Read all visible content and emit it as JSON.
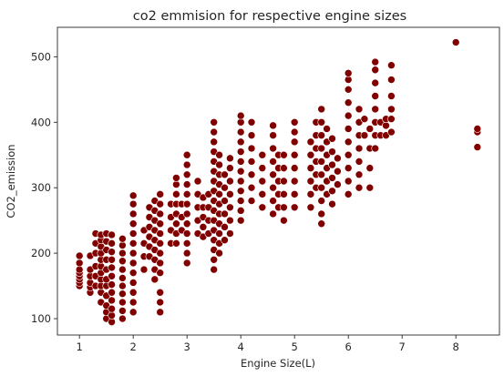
{
  "chart_data": {
    "type": "scatter",
    "title": "co2 emmision for respective engine sizes",
    "xlabel": "Engine Size(L)",
    "ylabel": "CO2_emission",
    "xlim": [
      0.59,
      8.81
    ],
    "ylim": [
      75,
      545
    ],
    "xticks": [
      "1",
      "2",
      "3",
      "4",
      "5",
      "6",
      "7",
      "8"
    ],
    "yticks": [
      "100",
      "200",
      "300",
      "400",
      "500"
    ],
    "grid": false,
    "legend": "none",
    "marker_color": "#800000",
    "marker_edge": "#ffffff",
    "series": [
      {
        "points": [
          [
            1.0,
            150
          ],
          [
            1.0,
            155
          ],
          [
            1.0,
            160
          ],
          [
            1.0,
            165
          ],
          [
            1.0,
            170
          ],
          [
            1.0,
            175
          ],
          [
            1.0,
            185
          ],
          [
            1.0,
            196
          ],
          [
            1.2,
            140
          ],
          [
            1.2,
            148
          ],
          [
            1.2,
            155
          ],
          [
            1.2,
            165
          ],
          [
            1.2,
            175
          ],
          [
            1.2,
            196
          ],
          [
            1.3,
            150
          ],
          [
            1.3,
            165
          ],
          [
            1.3,
            180
          ],
          [
            1.3,
            200
          ],
          [
            1.3,
            215
          ],
          [
            1.3,
            230
          ],
          [
            1.4,
            125
          ],
          [
            1.4,
            140
          ],
          [
            1.4,
            150
          ],
          [
            1.4,
            160
          ],
          [
            1.4,
            170
          ],
          [
            1.4,
            180
          ],
          [
            1.4,
            190
          ],
          [
            1.4,
            200
          ],
          [
            1.4,
            210
          ],
          [
            1.4,
            220
          ],
          [
            1.4,
            228
          ],
          [
            1.5,
            100
          ],
          [
            1.5,
            110
          ],
          [
            1.5,
            120
          ],
          [
            1.5,
            135
          ],
          [
            1.5,
            150
          ],
          [
            1.5,
            160
          ],
          [
            1.5,
            175
          ],
          [
            1.5,
            190
          ],
          [
            1.5,
            205
          ],
          [
            1.5,
            218
          ],
          [
            1.5,
            230
          ],
          [
            1.6,
            95
          ],
          [
            1.6,
            105
          ],
          [
            1.6,
            115
          ],
          [
            1.6,
            128
          ],
          [
            1.6,
            140
          ],
          [
            1.6,
            152
          ],
          [
            1.6,
            165
          ],
          [
            1.6,
            178
          ],
          [
            1.6,
            190
          ],
          [
            1.6,
            202
          ],
          [
            1.6,
            215
          ],
          [
            1.6,
            228
          ],
          [
            1.8,
            100
          ],
          [
            1.8,
            112
          ],
          [
            1.8,
            125
          ],
          [
            1.8,
            138
          ],
          [
            1.8,
            150
          ],
          [
            1.8,
            162
          ],
          [
            1.8,
            175
          ],
          [
            1.8,
            188
          ],
          [
            1.8,
            200
          ],
          [
            1.8,
            212
          ],
          [
            1.8,
            222
          ],
          [
            2.0,
            110
          ],
          [
            2.0,
            125
          ],
          [
            2.0,
            140
          ],
          [
            2.0,
            155
          ],
          [
            2.0,
            170
          ],
          [
            2.0,
            185
          ],
          [
            2.0,
            200
          ],
          [
            2.0,
            215
          ],
          [
            2.0,
            230
          ],
          [
            2.0,
            245
          ],
          [
            2.0,
            260
          ],
          [
            2.0,
            275
          ],
          [
            2.0,
            288
          ],
          [
            2.2,
            175
          ],
          [
            2.2,
            195
          ],
          [
            2.2,
            215
          ],
          [
            2.2,
            235
          ],
          [
            2.3,
            195
          ],
          [
            2.3,
            210
          ],
          [
            2.3,
            225
          ],
          [
            2.3,
            240
          ],
          [
            2.3,
            255
          ],
          [
            2.3,
            270
          ],
          [
            2.4,
            160
          ],
          [
            2.4,
            175
          ],
          [
            2.4,
            190
          ],
          [
            2.4,
            205
          ],
          [
            2.4,
            220
          ],
          [
            2.4,
            235
          ],
          [
            2.4,
            250
          ],
          [
            2.4,
            265
          ],
          [
            2.4,
            280
          ],
          [
            2.5,
            110
          ],
          [
            2.5,
            125
          ],
          [
            2.5,
            140
          ],
          [
            2.5,
            170
          ],
          [
            2.5,
            185
          ],
          [
            2.5,
            200
          ],
          [
            2.5,
            215
          ],
          [
            2.5,
            230
          ],
          [
            2.5,
            245
          ],
          [
            2.5,
            260
          ],
          [
            2.5,
            275
          ],
          [
            2.5,
            290
          ],
          [
            2.7,
            215
          ],
          [
            2.7,
            235
          ],
          [
            2.7,
            255
          ],
          [
            2.7,
            275
          ],
          [
            2.8,
            215
          ],
          [
            2.8,
            230
          ],
          [
            2.8,
            245
          ],
          [
            2.8,
            260
          ],
          [
            2.8,
            275
          ],
          [
            2.8,
            290
          ],
          [
            2.8,
            305
          ],
          [
            2.8,
            315
          ],
          [
            2.9,
            235
          ],
          [
            2.9,
            255
          ],
          [
            2.9,
            275
          ],
          [
            3.0,
            185
          ],
          [
            3.0,
            200
          ],
          [
            3.0,
            215
          ],
          [
            3.0,
            230
          ],
          [
            3.0,
            245
          ],
          [
            3.0,
            260
          ],
          [
            3.0,
            275
          ],
          [
            3.0,
            290
          ],
          [
            3.0,
            305
          ],
          [
            3.0,
            320
          ],
          [
            3.0,
            335
          ],
          [
            3.0,
            350
          ],
          [
            3.2,
            230
          ],
          [
            3.2,
            250
          ],
          [
            3.2,
            270
          ],
          [
            3.2,
            290
          ],
          [
            3.2,
            310
          ],
          [
            3.3,
            225
          ],
          [
            3.3,
            240
          ],
          [
            3.3,
            255
          ],
          [
            3.3,
            270
          ],
          [
            3.3,
            285
          ],
          [
            3.4,
            230
          ],
          [
            3.4,
            250
          ],
          [
            3.4,
            270
          ],
          [
            3.4,
            290
          ],
          [
            3.5,
            175
          ],
          [
            3.5,
            190
          ],
          [
            3.5,
            205
          ],
          [
            3.5,
            220
          ],
          [
            3.5,
            235
          ],
          [
            3.5,
            250
          ],
          [
            3.5,
            265
          ],
          [
            3.5,
            280
          ],
          [
            3.5,
            295
          ],
          [
            3.5,
            310
          ],
          [
            3.5,
            325
          ],
          [
            3.5,
            340
          ],
          [
            3.5,
            355
          ],
          [
            3.5,
            370
          ],
          [
            3.5,
            385
          ],
          [
            3.5,
            400
          ],
          [
            3.6,
            200
          ],
          [
            3.6,
            215
          ],
          [
            3.6,
            230
          ],
          [
            3.6,
            245
          ],
          [
            3.6,
            260
          ],
          [
            3.6,
            275
          ],
          [
            3.6,
            290
          ],
          [
            3.6,
            305
          ],
          [
            3.6,
            320
          ],
          [
            3.6,
            335
          ],
          [
            3.6,
            350
          ],
          [
            3.7,
            220
          ],
          [
            3.7,
            240
          ],
          [
            3.7,
            260
          ],
          [
            3.7,
            280
          ],
          [
            3.7,
            300
          ],
          [
            3.7,
            320
          ],
          [
            3.8,
            230
          ],
          [
            3.8,
            250
          ],
          [
            3.8,
            270
          ],
          [
            3.8,
            290
          ],
          [
            3.8,
            310
          ],
          [
            3.8,
            330
          ],
          [
            3.8,
            345
          ],
          [
            4.0,
            250
          ],
          [
            4.0,
            265
          ],
          [
            4.0,
            280
          ],
          [
            4.0,
            295
          ],
          [
            4.0,
            310
          ],
          [
            4.0,
            325
          ],
          [
            4.0,
            340
          ],
          [
            4.0,
            355
          ],
          [
            4.0,
            370
          ],
          [
            4.0,
            385
          ],
          [
            4.0,
            400
          ],
          [
            4.0,
            410
          ],
          [
            4.2,
            280
          ],
          [
            4.2,
            300
          ],
          [
            4.2,
            320
          ],
          [
            4.2,
            340
          ],
          [
            4.2,
            360
          ],
          [
            4.2,
            380
          ],
          [
            4.2,
            400
          ],
          [
            4.4,
            270
          ],
          [
            4.4,
            290
          ],
          [
            4.4,
            310
          ],
          [
            4.4,
            330
          ],
          [
            4.4,
            350
          ],
          [
            4.6,
            260
          ],
          [
            4.6,
            280
          ],
          [
            4.6,
            300
          ],
          [
            4.6,
            320
          ],
          [
            4.6,
            340
          ],
          [
            4.6,
            360
          ],
          [
            4.6,
            380
          ],
          [
            4.6,
            395
          ],
          [
            4.7,
            270
          ],
          [
            4.7,
            290
          ],
          [
            4.7,
            310
          ],
          [
            4.7,
            330
          ],
          [
            4.7,
            350
          ],
          [
            4.8,
            250
          ],
          [
            4.8,
            270
          ],
          [
            4.8,
            290
          ],
          [
            4.8,
            310
          ],
          [
            4.8,
            330
          ],
          [
            4.8,
            350
          ],
          [
            5.0,
            270
          ],
          [
            5.0,
            290
          ],
          [
            5.0,
            310
          ],
          [
            5.0,
            330
          ],
          [
            5.0,
            350
          ],
          [
            5.0,
            370
          ],
          [
            5.0,
            385
          ],
          [
            5.0,
            400
          ],
          [
            5.3,
            270
          ],
          [
            5.3,
            290
          ],
          [
            5.3,
            310
          ],
          [
            5.3,
            330
          ],
          [
            5.3,
            350
          ],
          [
            5.3,
            370
          ],
          [
            5.4,
            300
          ],
          [
            5.4,
            320
          ],
          [
            5.4,
            340
          ],
          [
            5.4,
            360
          ],
          [
            5.4,
            380
          ],
          [
            5.4,
            400
          ],
          [
            5.5,
            245
          ],
          [
            5.5,
            260
          ],
          [
            5.5,
            280
          ],
          [
            5.5,
            300
          ],
          [
            5.5,
            320
          ],
          [
            5.5,
            340
          ],
          [
            5.5,
            360
          ],
          [
            5.5,
            380
          ],
          [
            5.5,
            400
          ],
          [
            5.5,
            420
          ],
          [
            5.6,
            290
          ],
          [
            5.6,
            310
          ],
          [
            5.6,
            330
          ],
          [
            5.6,
            350
          ],
          [
            5.6,
            370
          ],
          [
            5.6,
            390
          ],
          [
            5.7,
            275
          ],
          [
            5.7,
            295
          ],
          [
            5.7,
            315
          ],
          [
            5.7,
            335
          ],
          [
            5.7,
            355
          ],
          [
            5.7,
            375
          ],
          [
            5.8,
            305
          ],
          [
            5.8,
            325
          ],
          [
            5.8,
            345
          ],
          [
            6.0,
            290
          ],
          [
            6.0,
            310
          ],
          [
            6.0,
            330
          ],
          [
            6.0,
            350
          ],
          [
            6.0,
            370
          ],
          [
            6.0,
            390
          ],
          [
            6.0,
            410
          ],
          [
            6.0,
            430
          ],
          [
            6.0,
            450
          ],
          [
            6.0,
            465
          ],
          [
            6.0,
            475
          ],
          [
            6.2,
            300
          ],
          [
            6.2,
            320
          ],
          [
            6.2,
            340
          ],
          [
            6.2,
            360
          ],
          [
            6.2,
            380
          ],
          [
            6.2,
            400
          ],
          [
            6.2,
            420
          ],
          [
            6.3,
            380
          ],
          [
            6.3,
            405
          ],
          [
            6.4,
            300
          ],
          [
            6.4,
            330
          ],
          [
            6.4,
            360
          ],
          [
            6.4,
            390
          ],
          [
            6.5,
            360
          ],
          [
            6.5,
            380
          ],
          [
            6.5,
            400
          ],
          [
            6.5,
            420
          ],
          [
            6.5,
            440
          ],
          [
            6.5,
            460
          ],
          [
            6.5,
            480
          ],
          [
            6.5,
            492
          ],
          [
            6.6,
            380
          ],
          [
            6.6,
            400
          ],
          [
            6.7,
            380
          ],
          [
            6.7,
            395
          ],
          [
            6.7,
            405
          ],
          [
            6.8,
            385
          ],
          [
            6.8,
            405
          ],
          [
            6.8,
            420
          ],
          [
            6.8,
            440
          ],
          [
            6.8,
            465
          ],
          [
            6.8,
            487
          ],
          [
            8.0,
            522
          ],
          [
            8.4,
            362
          ],
          [
            8.4,
            385
          ],
          [
            8.4,
            390
          ]
        ]
      }
    ]
  }
}
